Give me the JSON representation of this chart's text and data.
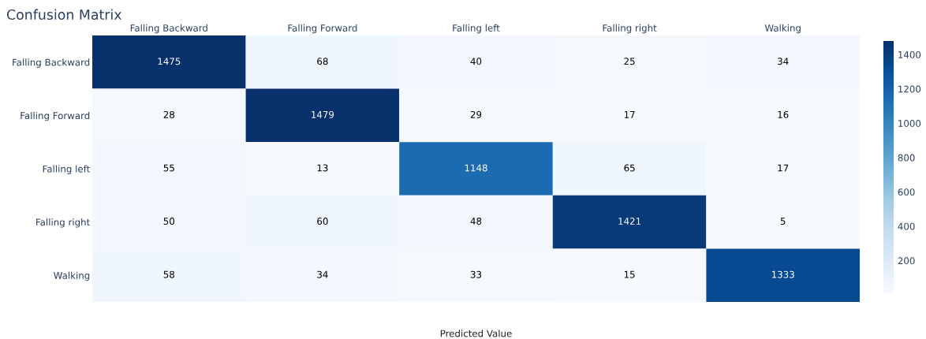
{
  "chart_data": {
    "type": "heatmap",
    "title": "Confusion Matrix",
    "xlabel": "Predicted Value",
    "categories": [
      "Falling Backward",
      "Falling Forward",
      "Falling left",
      "Falling right",
      "Walking"
    ],
    "y_categories": [
      "Falling Backward",
      "Falling Forward",
      "Falling left",
      "Falling right",
      "Walking"
    ],
    "cells": [
      [
        1475,
        68,
        40,
        25,
        34
      ],
      [
        28,
        1479,
        29,
        17,
        16
      ],
      [
        55,
        13,
        1148,
        65,
        17
      ],
      [
        50,
        60,
        48,
        1421,
        5
      ],
      [
        58,
        34,
        33,
        15,
        1333
      ]
    ],
    "data_labels": true,
    "clim": [
      5,
      1479
    ],
    "cticks": [
      200,
      400,
      600,
      800,
      1000,
      1200,
      1400
    ]
  }
}
